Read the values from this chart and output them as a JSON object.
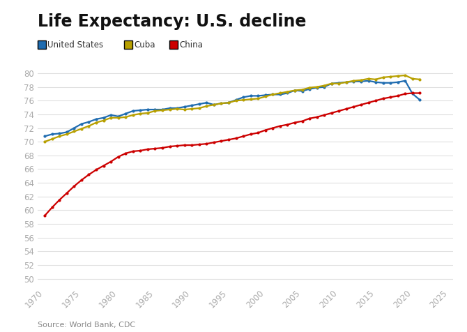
{
  "title": "Life Expectancy: U.S. decline",
  "source": "Source: World Bank, CDC",
  "background_color": "#ffffff",
  "plot_bg_color": "#ffffff",
  "years": [
    1970,
    1971,
    1972,
    1973,
    1974,
    1975,
    1976,
    1977,
    1978,
    1979,
    1980,
    1981,
    1982,
    1983,
    1984,
    1985,
    1986,
    1987,
    1988,
    1989,
    1990,
    1991,
    1992,
    1993,
    1994,
    1995,
    1996,
    1997,
    1998,
    1999,
    2000,
    2001,
    2002,
    2003,
    2004,
    2005,
    2006,
    2007,
    2008,
    2009,
    2010,
    2011,
    2012,
    2013,
    2014,
    2015,
    2016,
    2017,
    2018,
    2019,
    2020,
    2021
  ],
  "us": [
    70.8,
    71.1,
    71.2,
    71.4,
    72.0,
    72.6,
    72.9,
    73.3,
    73.5,
    73.9,
    73.7,
    74.1,
    74.5,
    74.6,
    74.7,
    74.7,
    74.7,
    74.9,
    74.9,
    75.1,
    75.3,
    75.5,
    75.7,
    75.4,
    75.6,
    75.7,
    76.1,
    76.5,
    76.7,
    76.7,
    76.8,
    76.9,
    76.9,
    77.1,
    77.5,
    77.4,
    77.7,
    77.9,
    78.0,
    78.5,
    78.6,
    78.7,
    78.8,
    78.8,
    78.9,
    78.7,
    78.6,
    78.6,
    78.7,
    78.9,
    77.0,
    76.1
  ],
  "cuba": [
    70.0,
    70.4,
    70.8,
    71.1,
    71.5,
    71.9,
    72.3,
    72.8,
    73.1,
    73.5,
    73.5,
    73.6,
    73.9,
    74.1,
    74.2,
    74.5,
    74.6,
    74.7,
    74.8,
    74.7,
    74.8,
    74.9,
    75.2,
    75.4,
    75.6,
    75.7,
    76.0,
    76.1,
    76.2,
    76.3,
    76.6,
    76.9,
    77.1,
    77.3,
    77.5,
    77.6,
    77.9,
    78.0,
    78.2,
    78.5,
    78.5,
    78.7,
    78.9,
    79.0,
    79.2,
    79.1,
    79.4,
    79.5,
    79.6,
    79.7,
    79.2,
    79.1
  ],
  "china": [
    59.2,
    60.4,
    61.5,
    62.5,
    63.5,
    64.4,
    65.2,
    65.9,
    66.5,
    67.1,
    67.8,
    68.3,
    68.6,
    68.7,
    68.9,
    69.0,
    69.1,
    69.3,
    69.4,
    69.5,
    69.5,
    69.6,
    69.7,
    69.9,
    70.1,
    70.3,
    70.5,
    70.8,
    71.1,
    71.3,
    71.7,
    72.0,
    72.3,
    72.5,
    72.8,
    73.0,
    73.4,
    73.6,
    73.9,
    74.2,
    74.5,
    74.8,
    75.1,
    75.4,
    75.7,
    76.0,
    76.3,
    76.5,
    76.7,
    77.0,
    77.1,
    77.1
  ],
  "us_color": "#1f6cb0",
  "cuba_color": "#b8a000",
  "china_color": "#cc0000",
  "marker_size": 3.0,
  "linewidth": 1.6,
  "ylim": [
    49,
    81
  ],
  "yticks": [
    50,
    52,
    54,
    56,
    58,
    60,
    62,
    64,
    66,
    68,
    70,
    72,
    74,
    76,
    78,
    80
  ],
  "xlim": [
    1969.0,
    2025.5
  ],
  "xticks": [
    1970,
    1975,
    1980,
    1985,
    1990,
    1995,
    2000,
    2005,
    2010,
    2015,
    2020,
    2025
  ],
  "title_fontsize": 17,
  "tick_fontsize": 8.5,
  "tick_color": "#aaaaaa",
  "grid_color": "#e0e0e0",
  "source_fontsize": 8
}
